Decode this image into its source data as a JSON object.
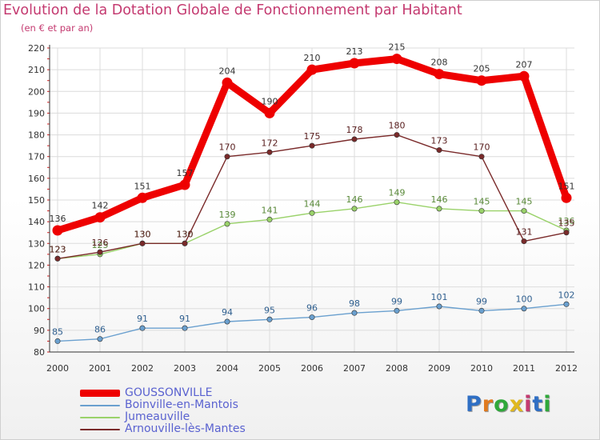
{
  "title": "Evolution de la Dotation Globale de Fonctionnement par Habitant",
  "subtitle": "(en € et par an)",
  "logo": {
    "text": "Proxiti",
    "colors": [
      "#2f6fc4",
      "#e07a1f",
      "#2fa83a",
      "#e0b81f",
      "#c43a70",
      "#2f6fc4",
      "#2fa83a"
    ]
  },
  "colors": {
    "title": "#c43a70",
    "legend_text": "#5a62d0",
    "grid": "#dcdcdc",
    "axis": "#333333"
  },
  "chart_data": {
    "type": "line",
    "title": "Evolution de la Dotation Globale de Fonctionnement par Habitant",
    "ylabel": "(en € et par an)",
    "xlabel": "",
    "x": [
      "2000",
      "2001",
      "2002",
      "2003",
      "2004",
      "2005",
      "2006",
      "2007",
      "2008",
      "2009",
      "2010",
      "2011",
      "2012"
    ],
    "ylim": [
      80,
      220
    ],
    "yticks": [
      80,
      90,
      100,
      110,
      120,
      130,
      140,
      150,
      160,
      170,
      180,
      190,
      200,
      210,
      220
    ],
    "grid": true,
    "legend_position": "bottom-left",
    "series": [
      {
        "name": "GOUSSONVILLE",
        "color": "#ee0000",
        "values": [
          136,
          142,
          151,
          157,
          204,
          190,
          210,
          213,
          215,
          208,
          205,
          207,
          151
        ]
      },
      {
        "name": "Boinville-en-Mantois",
        "color": "#6aa0cf",
        "values": [
          85,
          86,
          91,
          91,
          94,
          95,
          96,
          98,
          99,
          101,
          99,
          100,
          102
        ]
      },
      {
        "name": "Jumeauville",
        "color": "#9ad26a",
        "values": [
          123,
          125,
          130,
          130,
          139,
          141,
          144,
          146,
          149,
          146,
          145,
          145,
          136
        ]
      },
      {
        "name": "Arnouville-lès-Mantes",
        "color": "#7a2a2a",
        "values": [
          123,
          126,
          130,
          130,
          170,
          172,
          175,
          178,
          180,
          173,
          170,
          131,
          135
        ]
      }
    ]
  }
}
